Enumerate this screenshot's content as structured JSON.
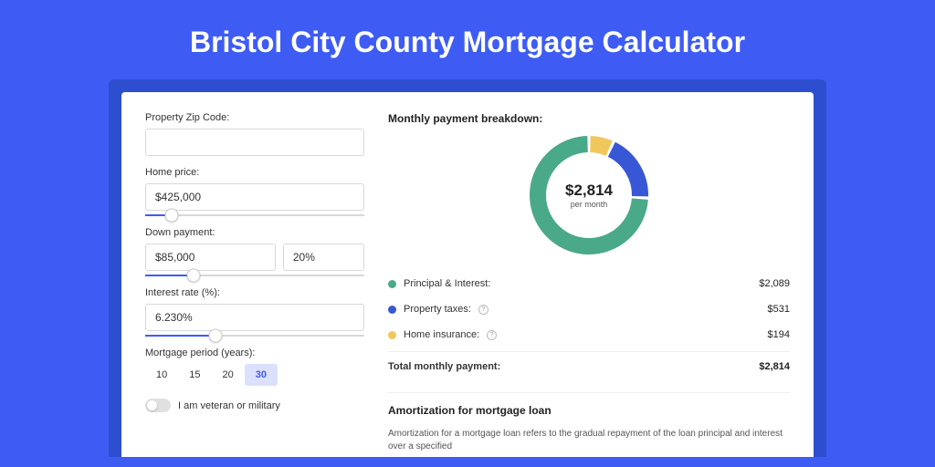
{
  "page": {
    "title": "Bristol City County Mortgage Calculator",
    "background_color": "#3e5cf4",
    "card_header_color": "#2d4ecf",
    "card_bg": "#ffffff"
  },
  "form": {
    "zip": {
      "label": "Property Zip Code:",
      "value": ""
    },
    "home_price": {
      "label": "Home price:",
      "value": "$425,000",
      "slider_pct": 12
    },
    "down_payment": {
      "label": "Down payment:",
      "amount": "$85,000",
      "pct": "20%",
      "slider_pct": 22
    },
    "interest_rate": {
      "label": "Interest rate (%):",
      "value": "6.230%",
      "slider_pct": 32
    },
    "mortgage_period": {
      "label": "Mortgage period (years):",
      "options": [
        "10",
        "15",
        "20",
        "30"
      ],
      "selected": "30"
    },
    "veteran": {
      "label": "I am veteran or military",
      "checked": false
    }
  },
  "breakdown": {
    "title": "Monthly payment breakdown:",
    "amount": "$2,814",
    "sub": "per month",
    "items": [
      {
        "label": "Principal & Interest:",
        "value": "$2,089",
        "numeric": 2089,
        "color": "#4aa989",
        "help": false
      },
      {
        "label": "Property taxes:",
        "value": "$531",
        "numeric": 531,
        "color": "#3857d6",
        "help": true
      },
      {
        "label": "Home insurance:",
        "value": "$194",
        "numeric": 194,
        "color": "#f1c75c",
        "help": true
      }
    ],
    "total_label": "Total monthly payment:",
    "total_value": "$2,814",
    "donut": {
      "stroke_width": 18,
      "radius": 56,
      "gap_deg": 3,
      "bg": "#ffffff"
    }
  },
  "amortization": {
    "title": "Amortization for mortgage loan",
    "text": "Amortization for a mortgage loan refers to the gradual repayment of the loan principal and interest over a specified"
  }
}
